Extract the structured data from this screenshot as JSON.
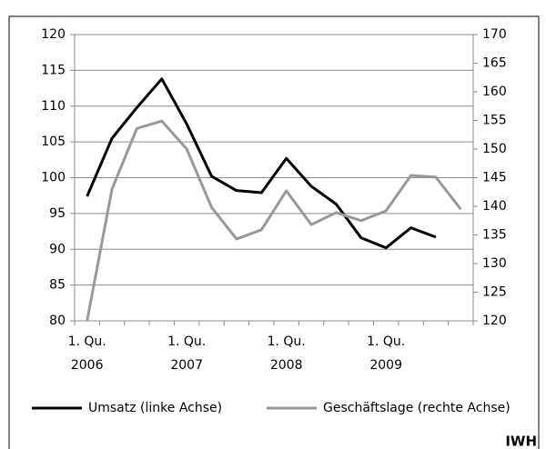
{
  "chart_data": {
    "type": "line",
    "categories": [
      "1. Qu.\n2006",
      null,
      null,
      null,
      "1. Qu.\n2007",
      null,
      null,
      null,
      "1. Qu.\n2008",
      null,
      null,
      null,
      "1. Qu.\n2009",
      null,
      null,
      null
    ],
    "series": [
      {
        "name": "Umsatz (linke Achse)",
        "color": "#000000",
        "axis": "y",
        "values": [
          97.4,
          105.5,
          109.8,
          113.8,
          107.5,
          100.2,
          98.2,
          97.9,
          102.7,
          98.8,
          96.3,
          91.6,
          90.2,
          93.0,
          91.7,
          null
        ]
      },
      {
        "name": "Geschäftslage (rechte Achse)",
        "color": "#999999",
        "axis": "y2",
        "values": [
          120,
          143,
          153.6,
          154.9,
          150,
          139.8,
          134.3,
          135.9,
          142.7,
          136.8,
          138.9,
          137.5,
          139.2,
          145.4,
          145.1,
          139.5
        ]
      }
    ],
    "ylim": [
      80,
      120
    ],
    "yticks": [
      80,
      85,
      90,
      95,
      100,
      105,
      110,
      115,
      120
    ],
    "y2lim": [
      120,
      170
    ],
    "y2ticks": [
      120,
      125,
      130,
      135,
      140,
      145,
      150,
      155,
      160,
      165,
      170
    ],
    "grid": true,
    "legend": "bottom",
    "source": "IWH"
  }
}
